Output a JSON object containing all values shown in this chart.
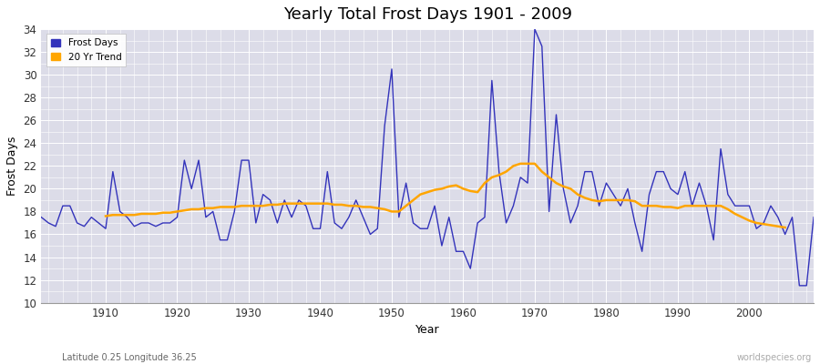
{
  "title": "Yearly Total Frost Days 1901 - 2009",
  "xlabel": "Year",
  "ylabel": "Frost Days",
  "subtitle": "Latitude 0.25 Longitude 36.25",
  "watermark": "worldspecies.org",
  "legend_frost": "Frost Days",
  "legend_trend": "20 Yr Trend",
  "frost_color": "#3333bb",
  "trend_color": "#FFA500",
  "bg_color": "#dcdce8",
  "ylim": [
    10,
    34
  ],
  "yticks": [
    10,
    12,
    14,
    16,
    18,
    20,
    22,
    24,
    26,
    28,
    30,
    32,
    34
  ],
  "xlim": [
    1901,
    2009
  ],
  "xticks": [
    1910,
    1920,
    1930,
    1940,
    1950,
    1960,
    1970,
    1980,
    1990,
    2000
  ],
  "years": [
    1901,
    1902,
    1903,
    1904,
    1905,
    1906,
    1907,
    1908,
    1909,
    1910,
    1911,
    1912,
    1913,
    1914,
    1915,
    1916,
    1917,
    1918,
    1919,
    1920,
    1921,
    1922,
    1923,
    1924,
    1925,
    1926,
    1927,
    1928,
    1929,
    1930,
    1931,
    1932,
    1933,
    1934,
    1935,
    1936,
    1937,
    1938,
    1939,
    1940,
    1941,
    1942,
    1943,
    1944,
    1945,
    1946,
    1947,
    1948,
    1949,
    1950,
    1951,
    1952,
    1953,
    1954,
    1955,
    1956,
    1957,
    1958,
    1959,
    1960,
    1961,
    1962,
    1963,
    1964,
    1965,
    1966,
    1967,
    1968,
    1969,
    1970,
    1971,
    1972,
    1973,
    1974,
    1975,
    1976,
    1977,
    1978,
    1979,
    1980,
    1981,
    1982,
    1983,
    1984,
    1985,
    1986,
    1987,
    1988,
    1989,
    1990,
    1991,
    1992,
    1993,
    1994,
    1995,
    1996,
    1997,
    1998,
    1999,
    2000,
    2001,
    2002,
    2003,
    2004,
    2005,
    2006,
    2007,
    2008,
    2009
  ],
  "frost_days": [
    17.5,
    17.0,
    16.7,
    18.5,
    18.5,
    17.0,
    16.7,
    17.5,
    17.0,
    16.5,
    21.5,
    18.0,
    17.5,
    16.7,
    17.0,
    17.0,
    16.7,
    17.0,
    17.0,
    17.5,
    22.5,
    20.0,
    22.5,
    17.5,
    18.0,
    15.5,
    15.5,
    18.0,
    22.5,
    22.5,
    17.0,
    19.5,
    19.0,
    17.0,
    19.0,
    17.5,
    19.0,
    18.5,
    16.5,
    16.5,
    21.5,
    17.0,
    16.5,
    17.5,
    19.0,
    17.5,
    16.0,
    16.5,
    25.5,
    30.5,
    17.5,
    20.5,
    17.0,
    16.5,
    16.5,
    18.5,
    15.0,
    17.5,
    14.5,
    14.5,
    13.0,
    17.0,
    17.5,
    29.5,
    21.5,
    17.0,
    18.5,
    21.0,
    20.5,
    34.0,
    32.5,
    18.0,
    26.5,
    20.0,
    17.0,
    18.5,
    21.5,
    21.5,
    18.5,
    20.5,
    19.5,
    18.5,
    20.0,
    17.0,
    14.5,
    19.5,
    21.5,
    21.5,
    20.0,
    19.5,
    21.5,
    18.5,
    20.5,
    18.5,
    15.5,
    23.5,
    19.5,
    18.5,
    18.5,
    18.5,
    16.5,
    17.0,
    18.5,
    17.5,
    16.0,
    17.5,
    11.5,
    11.5,
    17.5
  ],
  "trend_years": [
    1910,
    1911,
    1912,
    1913,
    1914,
    1915,
    1916,
    1917,
    1918,
    1919,
    1920,
    1921,
    1922,
    1923,
    1924,
    1925,
    1926,
    1927,
    1928,
    1929,
    1930,
    1931,
    1932,
    1933,
    1934,
    1935,
    1936,
    1937,
    1938,
    1939,
    1940,
    1941,
    1942,
    1943,
    1944,
    1945,
    1946,
    1947,
    1948,
    1949,
    1950,
    1951,
    1952,
    1953,
    1954,
    1955,
    1956,
    1957,
    1958,
    1959,
    1960,
    1961,
    1962,
    1963,
    1964,
    1965,
    1966,
    1967,
    1968,
    1969,
    1970,
    1971,
    1972,
    1973,
    1974,
    1975,
    1976,
    1977,
    1978,
    1979,
    1980,
    1981,
    1982,
    1983,
    1984,
    1985,
    1986,
    1987,
    1988,
    1989,
    1990,
    1991,
    1992,
    1993,
    1994,
    1995,
    1996,
    1997,
    1998,
    1999,
    2000,
    2001,
    2002,
    2003,
    2004,
    2005
  ],
  "trend_values": [
    17.6,
    17.7,
    17.7,
    17.7,
    17.7,
    17.8,
    17.8,
    17.8,
    17.9,
    17.9,
    18.0,
    18.1,
    18.2,
    18.2,
    18.3,
    18.3,
    18.4,
    18.4,
    18.4,
    18.5,
    18.5,
    18.5,
    18.5,
    18.6,
    18.6,
    18.7,
    18.7,
    18.7,
    18.7,
    18.7,
    18.7,
    18.7,
    18.6,
    18.6,
    18.5,
    18.5,
    18.4,
    18.4,
    18.3,
    18.2,
    18.0,
    18.0,
    18.5,
    19.0,
    19.5,
    19.7,
    19.9,
    20.0,
    20.2,
    20.3,
    20.0,
    19.8,
    19.7,
    20.5,
    21.0,
    21.2,
    21.5,
    22.0,
    22.2,
    22.2,
    22.2,
    21.5,
    21.0,
    20.5,
    20.2,
    20.0,
    19.5,
    19.2,
    19.0,
    18.9,
    19.0,
    19.0,
    19.0,
    19.0,
    18.9,
    18.5,
    18.5,
    18.5,
    18.4,
    18.4,
    18.3,
    18.5,
    18.5,
    18.5,
    18.5,
    18.5,
    18.5,
    18.2,
    17.8,
    17.5,
    17.2,
    17.0,
    16.9,
    16.8,
    16.7,
    16.6
  ]
}
